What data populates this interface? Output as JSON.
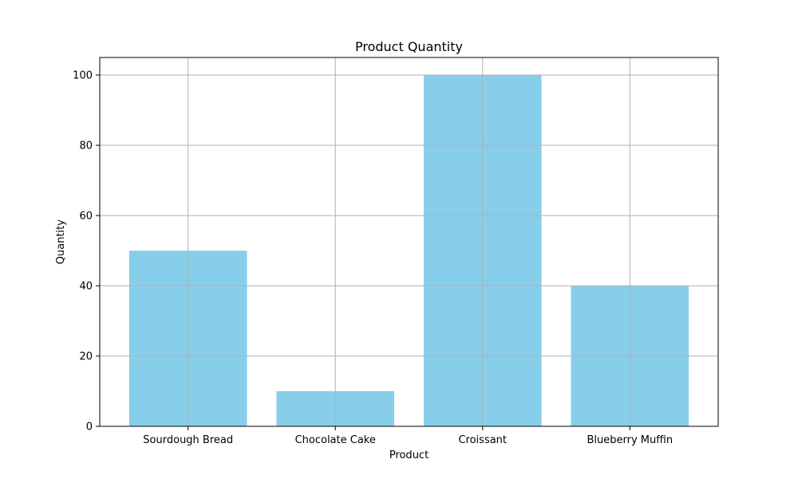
{
  "chart_data": {
    "type": "bar",
    "title": "Product Quantity",
    "xlabel": "Product",
    "ylabel": "Quantity",
    "categories": [
      "Sourdough Bread",
      "Chocolate Cake",
      "Croissant",
      "Blueberry Muffin"
    ],
    "values": [
      50,
      10,
      100,
      40
    ],
    "ylim": [
      0,
      105
    ],
    "yticks": [
      0,
      20,
      40,
      60,
      80,
      100
    ],
    "grid": true,
    "bar_color": "#87ceeb"
  }
}
